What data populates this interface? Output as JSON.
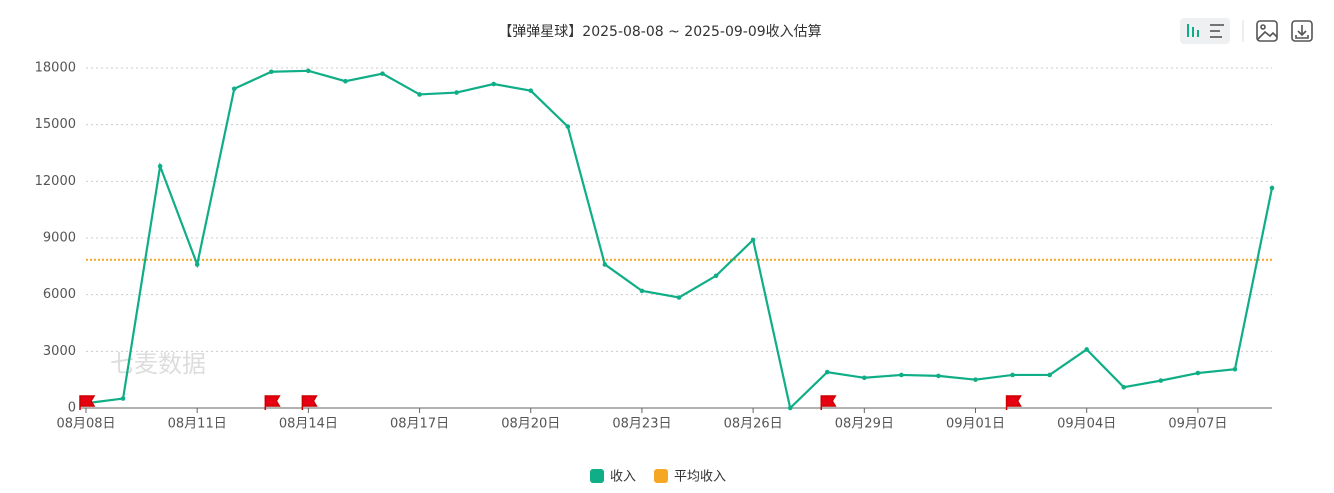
{
  "chart_data": {
    "type": "line",
    "title": "【弹弹星球】2025-08-08 ~ 2025-09-09收入估算",
    "watermark": "七麦数据",
    "categories": [
      "08月08日",
      null,
      null,
      "08月11日",
      null,
      null,
      "08月14日",
      null,
      null,
      "08月17日",
      null,
      null,
      "08月20日",
      null,
      null,
      "08月23日",
      null,
      null,
      "08月26日",
      null,
      null,
      "08月29日",
      null,
      null,
      "09月01日",
      null,
      null,
      "09月04日",
      null,
      null,
      "09月07日",
      null,
      null
    ],
    "series": [
      {
        "name": "收入",
        "color": "#0fae87",
        "values": [
          250,
          500,
          12800,
          7600,
          16900,
          17800,
          17850,
          17300,
          17700,
          16600,
          16700,
          17150,
          16800,
          14900,
          7600,
          6200,
          5850,
          7000,
          8900,
          0,
          1900,
          1600,
          1750,
          1700,
          1500,
          1750,
          1750,
          3100,
          1100,
          1450,
          1850,
          2050,
          11650
        ]
      }
    ],
    "average": {
      "name": "平均收入",
      "color": "#f5a623",
      "value": 7850
    },
    "flags": [
      0,
      5,
      6,
      20,
      25
    ],
    "ylim": [
      0,
      18000
    ],
    "yticks": [
      0,
      3000,
      6000,
      9000,
      12000,
      15000,
      18000
    ],
    "grid": true
  }
}
